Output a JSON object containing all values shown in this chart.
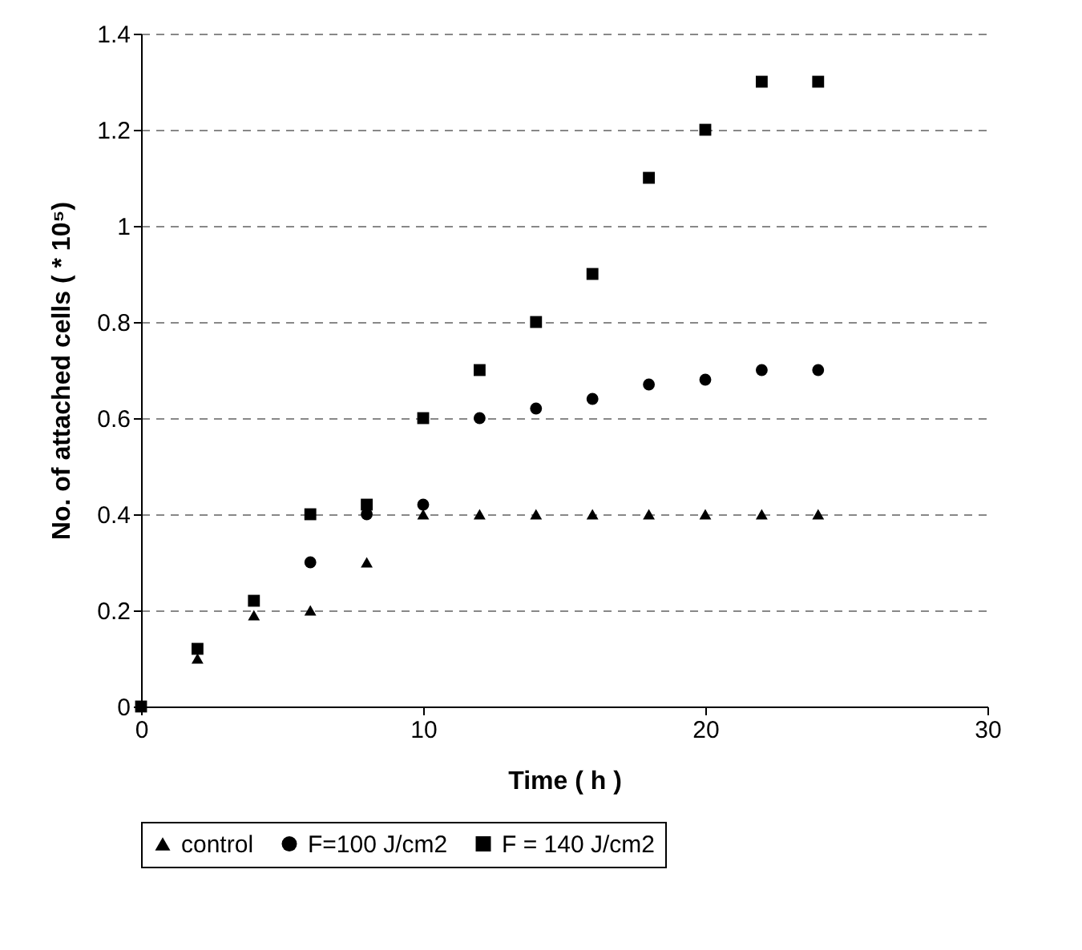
{
  "chart_data": {
    "type": "scatter",
    "xlabel": "Time ( h )",
    "ylabel": "No. of attached cells ( * 10⁵)",
    "xlim": [
      0,
      30
    ],
    "xticks": [
      0,
      10,
      20,
      30
    ],
    "ylim": [
      0,
      1.4
    ],
    "yticks": [
      0,
      0.2,
      0.4,
      0.6,
      0.8,
      1,
      1.2,
      1.4
    ],
    "grid": "y",
    "legend": "bottom",
    "series": [
      {
        "name": "control",
        "color": "#000000",
        "marker": "triangle",
        "x": [
          2,
          4,
          6,
          8,
          10,
          12,
          14,
          16,
          18,
          20,
          22,
          24
        ],
        "values": [
          0.1,
          0.19,
          0.2,
          0.3,
          0.4,
          0.4,
          0.4,
          0.4,
          0.4,
          0.4,
          0.4,
          0.4
        ]
      },
      {
        "name": "F=100 J/cm2",
        "color": "#000000",
        "marker": "circle",
        "x": [
          6,
          8,
          10,
          12,
          14,
          16,
          18,
          20,
          22,
          24
        ],
        "values": [
          0.3,
          0.4,
          0.42,
          0.6,
          0.62,
          0.64,
          0.67,
          0.68,
          0.7,
          0.7
        ]
      },
      {
        "name": "F = 140 J/cm2",
        "color": "#000000",
        "marker": "square",
        "x": [
          0,
          2,
          4,
          6,
          8,
          10,
          12,
          14,
          16,
          18,
          20,
          22,
          24
        ],
        "values": [
          0,
          0.12,
          0.22,
          0.4,
          0.42,
          0.6,
          0.7,
          0.8,
          0.9,
          1.1,
          1.2,
          1.3,
          1.3
        ]
      }
    ]
  }
}
